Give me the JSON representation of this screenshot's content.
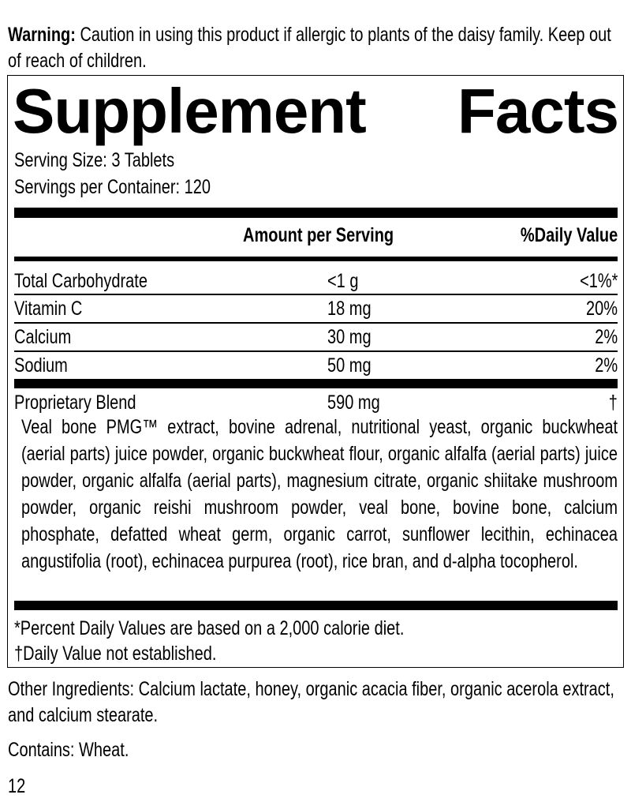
{
  "warning": {
    "label": "Warning:",
    "text": " Caution in using this product if allergic to plants of the daisy family. Keep out of reach of children."
  },
  "facts": {
    "title_word1": "Supplement",
    "title_word2": "Facts",
    "serving_size": "Serving Size: 3 Tablets",
    "servings_per_container": "Servings per Container: 120",
    "header_amount": "Amount per Serving",
    "header_dv": "%Daily Value",
    "rows": [
      {
        "name": "Total Carbohydrate",
        "amount": "<1 g",
        "dv": "<1%*"
      },
      {
        "name": "Vitamin C",
        "amount": "18 mg",
        "dv": "20%"
      },
      {
        "name": "Calcium",
        "amount": "30 mg",
        "dv": "2%"
      },
      {
        "name": "Sodium",
        "amount": "50 mg",
        "dv": "2%"
      }
    ],
    "blend": {
      "name": "Proprietary Blend",
      "amount": "590 mg",
      "dv": "†",
      "ingredients": "Veal bone PMG™ extract, bovine adrenal, nutritional yeast, organic buckwheat (aerial parts) juice powder, organic buckwheat flour, organic alfalfa (aerial parts) juice powder, organic alfalfa (aerial parts), magnesium citrate, organic shiitake mushroom powder, organic reishi mushroom powder, veal bone, bovine bone, calcium phosphate, defatted wheat germ, organic carrot, sunflower lecithin, echinacea angustifolia (root), echinacea purpurea (root), rice bran, and d-alpha tocopherol."
    },
    "footnote1": "*Percent Daily Values are based on a 2,000 calorie diet.",
    "footnote2": "†Daily Value not established."
  },
  "other_ingredients": "Other Ingredients: Calcium lactate, honey, organic acacia fiber, organic acerola extract, and calcium stearate.",
  "contains": "Contains: Wheat.",
  "page_number": "12"
}
